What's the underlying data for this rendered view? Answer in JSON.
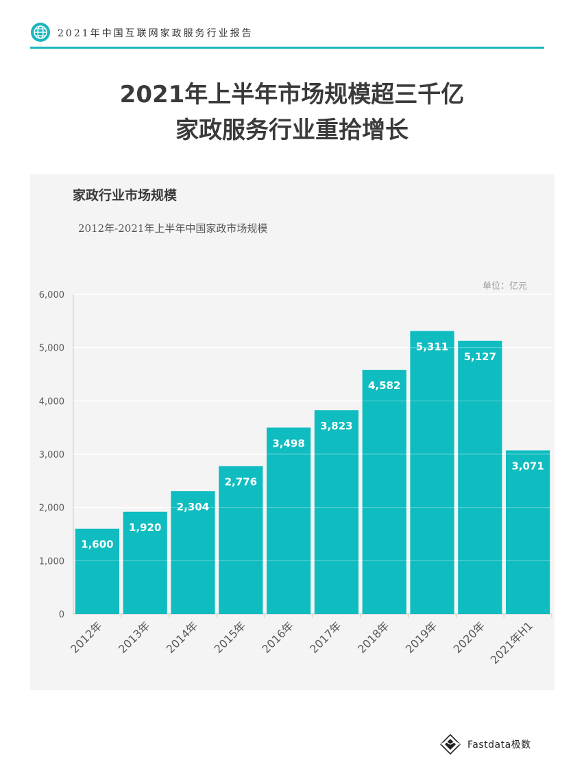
{
  "header": {
    "title": "2021年中国互联网家政服务行业报告",
    "accent_color": "#1bb5bd",
    "icon": "globe-icon"
  },
  "page_title": {
    "line1": "2021年上半年市场规模超三千亿",
    "line2": "家政服务行业重拾增长"
  },
  "chart_data": {
    "type": "bar",
    "title": "家政行业市场规模",
    "subtitle": "2012年-2021年上半年中国家政市场规模",
    "unit_label": "单位：亿元",
    "categories": [
      "2012年",
      "2013年",
      "2014年",
      "2015年",
      "2016年",
      "2017年",
      "2018年",
      "2019年",
      "2020年",
      "2021年H1"
    ],
    "values": [
      1600,
      1920,
      2304,
      2776,
      3498,
      3823,
      4582,
      5311,
      5127,
      3071
    ],
    "value_labels": [
      "1,600",
      "1,920",
      "2,304",
      "2,776",
      "3,498",
      "3,823",
      "4,582",
      "5,311",
      "5,127",
      "3,071"
    ],
    "yticks": [
      0,
      1000,
      2000,
      3000,
      4000,
      5000,
      6000
    ],
    "ytick_labels": [
      "0",
      "1,000",
      "2,000",
      "3,000",
      "4,000",
      "5,000",
      "6,000"
    ],
    "ylim": [
      0,
      6000
    ],
    "grid": true,
    "bar_color": "#0fbcc0",
    "legend": "none"
  },
  "footer": {
    "brand": "Fastdata极数",
    "icon": "fastdata-logo-icon"
  }
}
